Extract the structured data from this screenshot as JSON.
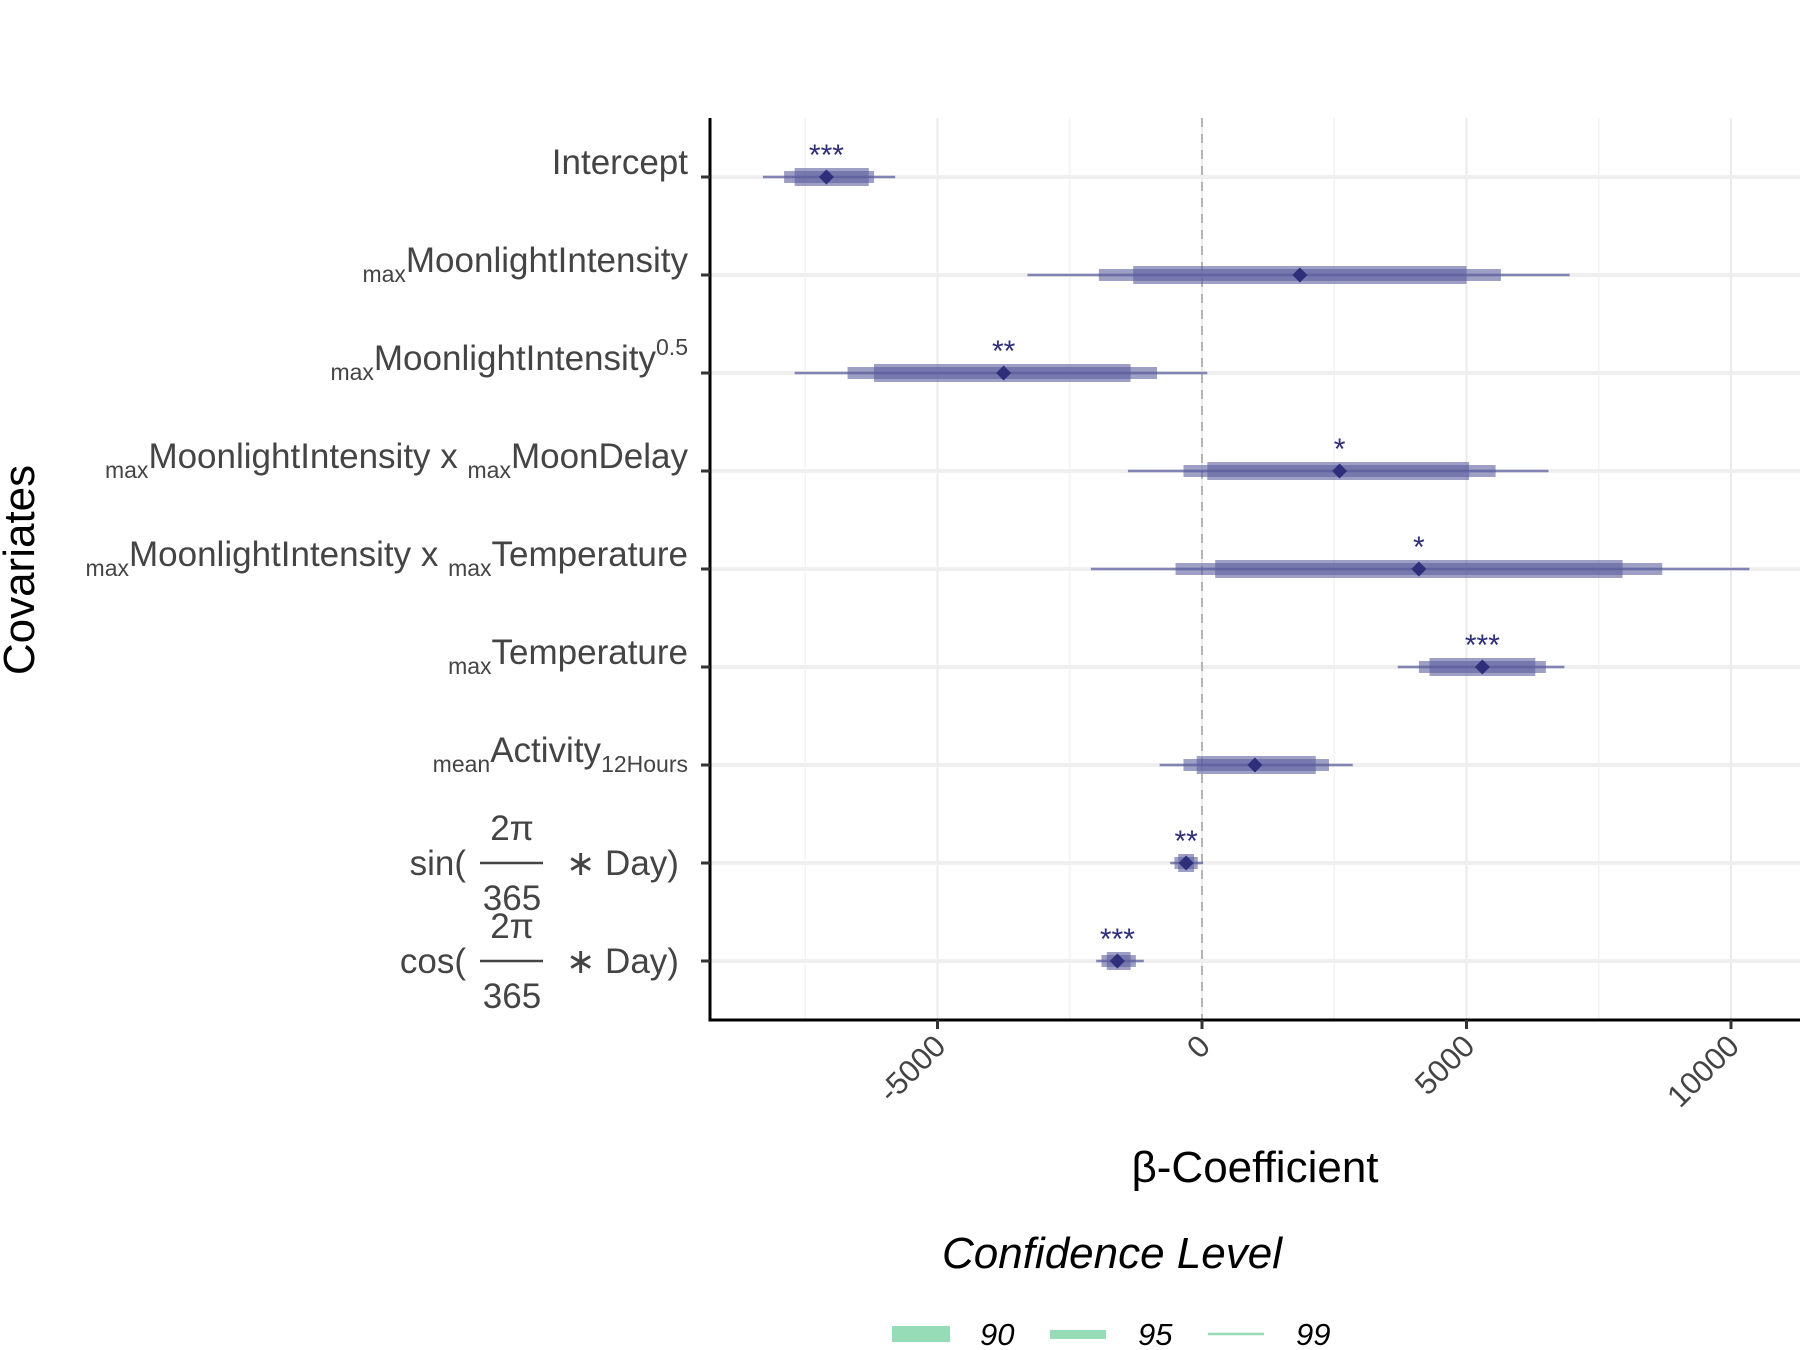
{
  "chart_data": {
    "type": "forest",
    "xlabel": "β-Coefficient",
    "ylabel": "Covariates",
    "xlim": [
      -9300,
      11300
    ],
    "x_ticks": [
      -5000,
      0,
      5000,
      10000
    ],
    "x_tick_labels": [
      "-5000",
      "0",
      "5000",
      "10000"
    ],
    "reference_line": 0,
    "grid": true,
    "legend": {
      "title": "Confidence Level",
      "position": "bottom",
      "items": [
        "90",
        "95",
        "99"
      ]
    },
    "colors": {
      "interval": "#5c5f9e",
      "point": "#2e2e7a",
      "legend": "#96dcb6"
    },
    "covariates": [
      {
        "label": "Intercept",
        "estimate": -7100,
        "ci90": [
          -7700,
          -6300
        ],
        "ci95": [
          -7900,
          -6200
        ],
        "ci99": [
          -8300,
          -5800
        ],
        "stars": "***"
      },
      {
        "label": "maxMoonlightIntensity",
        "estimate": 1850,
        "ci90": [
          -1300,
          5000
        ],
        "ci95": [
          -1950,
          5650
        ],
        "ci99": [
          -3300,
          6950
        ],
        "stars": ""
      },
      {
        "label": "maxMoonlightIntensity^0.5",
        "estimate": -3750,
        "ci90": [
          -6200,
          -1350
        ],
        "ci95": [
          -6700,
          -850
        ],
        "ci99": [
          -7700,
          100
        ],
        "stars": "**"
      },
      {
        "label": "maxMoonlightIntensity x maxMoonDelay",
        "estimate": 2600,
        "ci90": [
          100,
          5050
        ],
        "ci95": [
          -350,
          5550
        ],
        "ci99": [
          -1400,
          6550
        ],
        "stars": "*"
      },
      {
        "label": "maxMoonlightIntensity x maxTemperature",
        "estimate": 4100,
        "ci90": [
          250,
          7950
        ],
        "ci95": [
          -500,
          8700
        ],
        "ci99": [
          -2100,
          10350
        ],
        "stars": "*"
      },
      {
        "label": "maxTemperature",
        "estimate": 5300,
        "ci90": [
          4300,
          6300
        ],
        "ci95": [
          4100,
          6500
        ],
        "ci99": [
          3700,
          6850
        ],
        "stars": "***"
      },
      {
        "label": "meanActivity12Hours",
        "estimate": 1000,
        "ci90": [
          -100,
          2150
        ],
        "ci95": [
          -350,
          2400
        ],
        "ci99": [
          -800,
          2850
        ],
        "stars": ""
      },
      {
        "label": "sin(2π/365 * Day)",
        "estimate": -300,
        "ci90": [
          -450,
          -150
        ],
        "ci95": [
          -520,
          -80
        ],
        "ci99": [
          -600,
          20
        ],
        "stars": "**"
      },
      {
        "label": "cos(2π/365 * Day)",
        "estimate": -1600,
        "ci90": [
          -1800,
          -1350
        ],
        "ci95": [
          -1900,
          -1250
        ],
        "ci99": [
          -2000,
          -1100
        ],
        "stars": "***"
      }
    ]
  }
}
